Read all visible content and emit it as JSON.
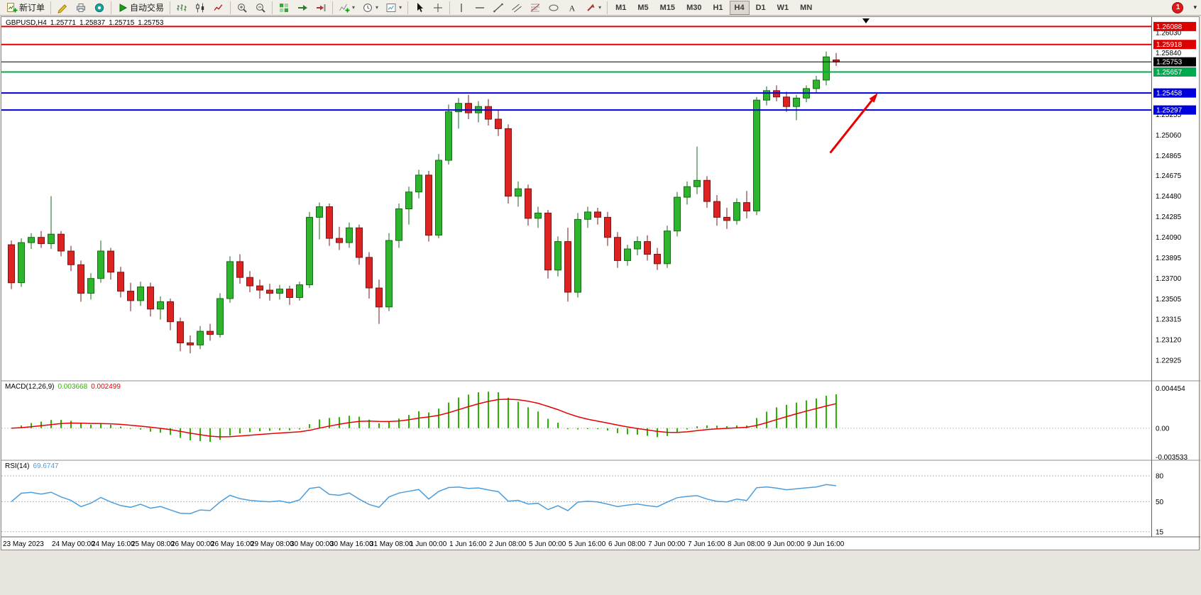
{
  "header": {
    "symbol": "GBPUSD,H4",
    "open": "1.25771",
    "high": "1.25837",
    "low": "1.25715",
    "close": "1.25753"
  },
  "indicators": {
    "macd": {
      "title": "MACD(12,26,9)",
      "main": "0.003668",
      "signal": "0.002499"
    },
    "rsi": {
      "title": "RSI(14)",
      "value": "69.6747"
    }
  },
  "toolbar": {
    "notification_count": "1",
    "groups": [
      {
        "name": "trade-group",
        "items": [
          {
            "name": "new-order-button",
            "icon": "new-order",
            "label": "新订单"
          }
        ]
      },
      {
        "name": "app-icons-group",
        "items": [
          {
            "name": "metaeditor-button",
            "icon": "editor"
          },
          {
            "name": "print-button",
            "icon": "printer"
          },
          {
            "name": "community-button",
            "icon": "community"
          }
        ]
      },
      {
        "name": "autotrading-group",
        "items": [
          {
            "name": "auto-trading-button",
            "icon": "play",
            "label": "自动交易"
          }
        ]
      },
      {
        "name": "chart-type-group",
        "items": [
          {
            "name": "bar-chart-button",
            "icon": "bars"
          },
          {
            "name": "candlestick-chart-button",
            "icon": "candles"
          },
          {
            "name": "line-chart-button",
            "icon": "linechart"
          }
        ]
      },
      {
        "name": "zoom-group",
        "items": [
          {
            "name": "zoom-in-button",
            "icon": "zoom-in"
          },
          {
            "name": "zoom-out-button",
            "icon": "zoom-out"
          }
        ]
      },
      {
        "name": "window-group",
        "items": [
          {
            "name": "tile-windows-button",
            "icon": "tile"
          },
          {
            "name": "auto-scroll-button",
            "icon": "auto-scroll"
          },
          {
            "name": "chart-shift-button",
            "icon": "chart-shift"
          }
        ]
      },
      {
        "name": "insert-group",
        "items": [
          {
            "name": "indicators-button",
            "icon": "indicators",
            "caret": true
          },
          {
            "name": "periods-button",
            "icon": "clock",
            "caret": true
          },
          {
            "name": "templates-button",
            "icon": "template",
            "caret": true
          }
        ]
      },
      {
        "name": "pointer-group",
        "items": [
          {
            "name": "cursor-button",
            "icon": "cursor"
          },
          {
            "name": "crosshair-button",
            "icon": "crosshair"
          }
        ]
      },
      {
        "name": "line-studies-group",
        "items": [
          {
            "name": "vertical-line-button",
            "icon": "vline"
          },
          {
            "name": "horizontal-line-button",
            "icon": "hline"
          },
          {
            "name": "trendline-button",
            "icon": "tline"
          },
          {
            "name": "channel-button",
            "icon": "channel"
          },
          {
            "name": "fibonacci-button",
            "icon": "fibo"
          },
          {
            "name": "shapes-button",
            "icon": "shapes"
          },
          {
            "name": "text-button",
            "icon": "text"
          },
          {
            "name": "arrows-button",
            "icon": "arrows",
            "caret": true
          }
        ]
      },
      {
        "name": "timeframe-group",
        "items": [
          {
            "name": "timeframe-m1",
            "label": "M1"
          },
          {
            "name": "timeframe-m5",
            "label": "M5"
          },
          {
            "name": "timeframe-m15",
            "label": "M15"
          },
          {
            "name": "timeframe-m30",
            "label": "M30"
          },
          {
            "name": "timeframe-h1",
            "label": "H1"
          },
          {
            "name": "timeframe-h4",
            "label": "H4",
            "active": true
          },
          {
            "name": "timeframe-d1",
            "label": "D1"
          },
          {
            "name": "timeframe-w1",
            "label": "W1"
          },
          {
            "name": "timeframe-mn",
            "label": "MN"
          }
        ]
      }
    ]
  },
  "chart_data": {
    "type": "candlestick",
    "symbol": "GBPUSD",
    "timeframe": "H4",
    "grid": false,
    "colors": {
      "bull": "#2eb52e",
      "bull_border": "#156b15",
      "bear": "#dd2222",
      "bear_border": "#7d1515",
      "macd_hist": "#2db200",
      "macd_signal": "#e80000",
      "rsi": "#4a9ede",
      "background": "#ffffff",
      "axis_text": "#000000"
    },
    "candles": [
      [
        1.2402,
        1.2406,
        1.236,
        1.2366
      ],
      [
        1.2366,
        1.2408,
        1.2362,
        1.2404
      ],
      [
        1.2404,
        1.2413,
        1.2398,
        1.2409
      ],
      [
        1.2409,
        1.2415,
        1.2399,
        1.2403
      ],
      [
        1.2403,
        1.2448,
        1.2398,
        1.2412
      ],
      [
        1.2412,
        1.2415,
        1.2391,
        1.2396
      ],
      [
        1.2396,
        1.2401,
        1.2377,
        1.2383
      ],
      [
        1.2383,
        1.2387,
        1.2348,
        1.2356
      ],
      [
        1.2356,
        1.2375,
        1.235,
        1.237
      ],
      [
        1.237,
        1.2406,
        1.2366,
        1.2396
      ],
      [
        1.2396,
        1.2399,
        1.2369,
        1.2376
      ],
      [
        1.2376,
        1.2381,
        1.2352,
        1.2358
      ],
      [
        1.2358,
        1.2366,
        1.2339,
        1.2349
      ],
      [
        1.2349,
        1.2367,
        1.2344,
        1.2362
      ],
      [
        1.2362,
        1.2366,
        1.2334,
        1.2341
      ],
      [
        1.2341,
        1.2353,
        1.2331,
        1.2348
      ],
      [
        1.2348,
        1.2351,
        1.2321,
        1.2329
      ],
      [
        1.2329,
        1.2333,
        1.2301,
        1.2309
      ],
      [
        1.2309,
        1.2316,
        1.2299,
        1.2307
      ],
      [
        1.2307,
        1.2325,
        1.2303,
        1.232
      ],
      [
        1.232,
        1.2327,
        1.2311,
        1.2317
      ],
      [
        1.2317,
        1.2356,
        1.2314,
        1.2351
      ],
      [
        1.2351,
        1.2391,
        1.2347,
        1.2386
      ],
      [
        1.2386,
        1.2393,
        1.2365,
        1.2371
      ],
      [
        1.2371,
        1.2377,
        1.2357,
        1.2363
      ],
      [
        1.2363,
        1.2369,
        1.2351,
        1.2359
      ],
      [
        1.2359,
        1.2365,
        1.2349,
        1.2356
      ],
      [
        1.2356,
        1.2364,
        1.235,
        1.236
      ],
      [
        1.236,
        1.2363,
        1.2345,
        1.2352
      ],
      [
        1.2352,
        1.2367,
        1.2349,
        1.2364
      ],
      [
        1.2364,
        1.2433,
        1.2361,
        1.2428
      ],
      [
        1.2428,
        1.2442,
        1.2407,
        1.2438
      ],
      [
        1.2438,
        1.2441,
        1.2401,
        1.2408
      ],
      [
        1.2408,
        1.2419,
        1.2397,
        1.2404
      ],
      [
        1.2404,
        1.2423,
        1.2399,
        1.2418
      ],
      [
        1.2418,
        1.2421,
        1.2383,
        1.239
      ],
      [
        1.239,
        1.2395,
        1.2351,
        1.2361
      ],
      [
        1.2361,
        1.2369,
        1.2327,
        1.2343
      ],
      [
        1.2343,
        1.2413,
        1.2339,
        1.2406
      ],
      [
        1.2406,
        1.2441,
        1.2399,
        1.2436
      ],
      [
        1.2436,
        1.2457,
        1.2421,
        1.2452
      ],
      [
        1.2452,
        1.2473,
        1.2446,
        1.2468
      ],
      [
        1.2468,
        1.2472,
        1.2405,
        1.2411
      ],
      [
        1.2411,
        1.2488,
        1.2408,
        1.2482
      ],
      [
        1.2482,
        1.2535,
        1.2478,
        1.2528
      ],
      [
        1.2528,
        1.2541,
        1.2512,
        1.2536
      ],
      [
        1.2536,
        1.2544,
        1.2521,
        1.2527
      ],
      [
        1.2527,
        1.2538,
        1.2518,
        1.2533
      ],
      [
        1.2533,
        1.254,
        1.2515,
        1.2521
      ],
      [
        1.2521,
        1.2529,
        1.2505,
        1.2512
      ],
      [
        1.2512,
        1.2516,
        1.2441,
        1.2448
      ],
      [
        1.2448,
        1.2462,
        1.2438,
        1.2455
      ],
      [
        1.2455,
        1.2459,
        1.242,
        1.2427
      ],
      [
        1.2427,
        1.2438,
        1.2418,
        1.2432
      ],
      [
        1.2432,
        1.2435,
        1.237,
        1.2378
      ],
      [
        1.2378,
        1.241,
        1.2372,
        1.2405
      ],
      [
        1.2405,
        1.2418,
        1.2348,
        1.2357
      ],
      [
        1.2357,
        1.2432,
        1.2352,
        1.2426
      ],
      [
        1.2426,
        1.2438,
        1.2418,
        1.2433
      ],
      [
        1.2433,
        1.2437,
        1.2421,
        1.2428
      ],
      [
        1.2428,
        1.2433,
        1.2401,
        1.2409
      ],
      [
        1.2409,
        1.2414,
        1.238,
        1.2387
      ],
      [
        1.2387,
        1.2402,
        1.2382,
        1.2398
      ],
      [
        1.2398,
        1.241,
        1.2392,
        1.2405
      ],
      [
        1.2405,
        1.2411,
        1.2387,
        1.2393
      ],
      [
        1.2393,
        1.2399,
        1.2378,
        1.2384
      ],
      [
        1.2384,
        1.242,
        1.238,
        1.2415
      ],
      [
        1.2415,
        1.2452,
        1.241,
        1.2447
      ],
      [
        1.2447,
        1.2462,
        1.244,
        1.2457
      ],
      [
        1.2457,
        1.2495,
        1.245,
        1.2463
      ],
      [
        1.2463,
        1.2467,
        1.2437,
        1.2443
      ],
      [
        1.2443,
        1.2449,
        1.242,
        1.2428
      ],
      [
        1.2428,
        1.2437,
        1.2417,
        1.2425
      ],
      [
        1.2425,
        1.2446,
        1.2421,
        1.2442
      ],
      [
        1.2442,
        1.2453,
        1.2427,
        1.2434
      ],
      [
        1.2434,
        1.2542,
        1.243,
        1.2539
      ],
      [
        1.2539,
        1.2552,
        1.2534,
        1.2548
      ],
      [
        1.2548,
        1.2553,
        1.2538,
        1.2542
      ],
      [
        1.2542,
        1.2547,
        1.2528,
        1.2533
      ],
      [
        1.2533,
        1.2544,
        1.252,
        1.2541
      ],
      [
        1.2541,
        1.2553,
        1.2537,
        1.255
      ],
      [
        1.255,
        1.2562,
        1.2546,
        1.2558
      ],
      [
        1.2558,
        1.2585,
        1.2553,
        1.258
      ],
      [
        1.25771,
        1.25837,
        1.25715,
        1.25753
      ]
    ],
    "time_labels": [
      {
        "i": 0,
        "label": "23 May 2023"
      },
      {
        "i": 6,
        "label": "24 May 00:00"
      },
      {
        "i": 10,
        "label": "24 May 16:00"
      },
      {
        "i": 14,
        "label": "25 May 08:00"
      },
      {
        "i": 18,
        "label": "26 May 00:00"
      },
      {
        "i": 22,
        "label": "26 May 16:00"
      },
      {
        "i": 26,
        "label": "29 May 08:00"
      },
      {
        "i": 30,
        "label": "30 May 00:00"
      },
      {
        "i": 34,
        "label": "30 May 16:00"
      },
      {
        "i": 38,
        "label": "31 May 08:00"
      },
      {
        "i": 42,
        "label": "1 Jun 00:00"
      },
      {
        "i": 46,
        "label": "1 Jun 16:00"
      },
      {
        "i": 50,
        "label": "2 Jun 08:00"
      },
      {
        "i": 54,
        "label": "5 Jun 00:00"
      },
      {
        "i": 58,
        "label": "5 Jun 16:00"
      },
      {
        "i": 62,
        "label": "6 Jun 08:00"
      },
      {
        "i": 66,
        "label": "7 Jun 00:00"
      },
      {
        "i": 70,
        "label": "7 Jun 16:00"
      },
      {
        "i": 74,
        "label": "8 Jun 08:00"
      },
      {
        "i": 78,
        "label": "9 Jun 00:00"
      },
      {
        "i": 82,
        "label": "9 Jun 16:00"
      }
    ],
    "price_axis": {
      "top_value": 1.2603,
      "bottom_value": 1.22925,
      "labels": [
        "1.26030",
        "1.25840",
        "1.25645",
        "1.25450",
        "1.25255",
        "1.25060",
        "1.24865",
        "1.24675",
        "1.24480",
        "1.24285",
        "1.24090",
        "1.23895",
        "1.23700",
        "1.23505",
        "1.23315",
        "1.23120",
        "1.22925"
      ]
    },
    "levels": [
      {
        "name": "resistance-line-1",
        "price": 1.26088,
        "label": "1.26088",
        "color": "#dd0000",
        "thickness": 2
      },
      {
        "name": "resistance-line-2",
        "price": 1.25918,
        "label": "1.25918",
        "color": "#dd0000",
        "thickness": 2
      },
      {
        "name": "current-price-line",
        "price": 1.25753,
        "label": "1.25753",
        "color": "#000000",
        "thickness": 1
      },
      {
        "name": "support-line-green",
        "price": 1.25657,
        "label": "1.25657",
        "color": "#00a94f",
        "thickness": 2
      },
      {
        "name": "support-line-blue-1",
        "price": 1.25458,
        "label": "1.25458",
        "color": "#0000dd",
        "thickness": 2
      },
      {
        "name": "support-line-blue-2",
        "price": 1.25297,
        "label": "1.25297",
        "color": "#0000dd",
        "thickness": 2
      }
    ],
    "macd": {
      "title": "MACD(12,26,9)",
      "main": "0.003668",
      "signal": "0.002499",
      "params": [
        12,
        26,
        9
      ],
      "axis": {
        "max": 0.004454,
        "min": -0.003533,
        "labels": [
          "0.004454",
          "0.00",
          "-0.003533"
        ]
      }
    },
    "rsi": {
      "title": "RSI(14)",
      "value": "69.6747",
      "period": 14,
      "axis_labels": [
        {
          "value": 80,
          "label": "80"
        },
        {
          "value": 50,
          "label": "50"
        },
        {
          "value": 15,
          "label": "15"
        }
      ]
    },
    "arrow": {
      "from_index": 82.4,
      "from_price": 1.2489,
      "to_index": 87.2,
      "to_price": 1.25459,
      "color": "#e80000"
    },
    "top_marker": {
      "index": 86,
      "color": "#000000"
    }
  }
}
